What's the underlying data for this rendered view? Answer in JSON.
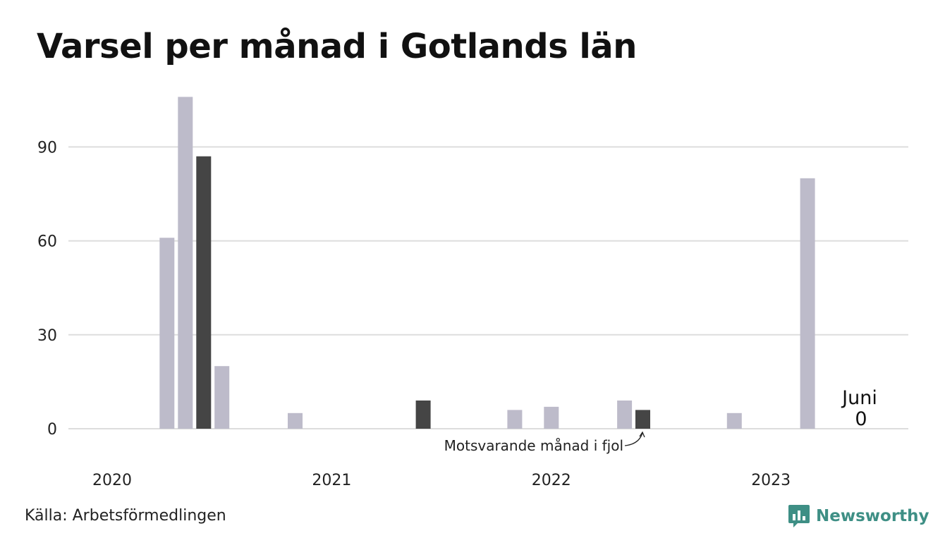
{
  "title": "Varsel per månad i Gotlands län",
  "source": "Källa: Arbetsförmedlingen",
  "brand": {
    "name": "Newsworthy",
    "icon": "newsworthy-logo-icon"
  },
  "colors": {
    "bar": "#bdbbca",
    "highlight": "#454545",
    "grid": "#dddddd",
    "brand": "#3e8f85"
  },
  "annotations": {
    "prev_year": "Motsvarande månad i fjol",
    "current_month": "Juni",
    "current_value": "0"
  },
  "chart_data": {
    "type": "bar",
    "title": "Varsel per månad i Gotlands län",
    "xlabel": "",
    "ylabel": "",
    "ylim": [
      0,
      106
    ],
    "yticks": [
      0,
      30,
      60,
      90
    ],
    "grid": true,
    "xtick_labels": [
      "2020",
      "2021",
      "2022",
      "2023"
    ],
    "x": [
      "2020-01",
      "2020-02",
      "2020-03",
      "2020-04",
      "2020-05",
      "2020-06",
      "2020-07",
      "2020-08",
      "2020-09",
      "2020-10",
      "2020-11",
      "2020-12",
      "2021-01",
      "2021-02",
      "2021-03",
      "2021-04",
      "2021-05",
      "2021-06",
      "2021-07",
      "2021-08",
      "2021-09",
      "2021-10",
      "2021-11",
      "2021-12",
      "2022-01",
      "2022-02",
      "2022-03",
      "2022-04",
      "2022-05",
      "2022-06",
      "2022-07",
      "2022-08",
      "2022-09",
      "2022-10",
      "2022-11",
      "2022-12",
      "2023-01",
      "2023-02",
      "2023-03",
      "2023-04",
      "2023-05",
      "2023-06"
    ],
    "values": [
      0,
      0,
      0,
      61,
      106,
      87,
      20,
      0,
      0,
      0,
      5,
      0,
      0,
      0,
      0,
      0,
      0,
      9,
      0,
      0,
      0,
      0,
      6,
      0,
      7,
      0,
      0,
      0,
      9,
      6,
      0,
      0,
      0,
      0,
      5,
      0,
      0,
      0,
      80,
      0,
      0,
      0
    ],
    "highlighted": [
      "2020-06",
      "2021-06",
      "2022-06"
    ]
  }
}
